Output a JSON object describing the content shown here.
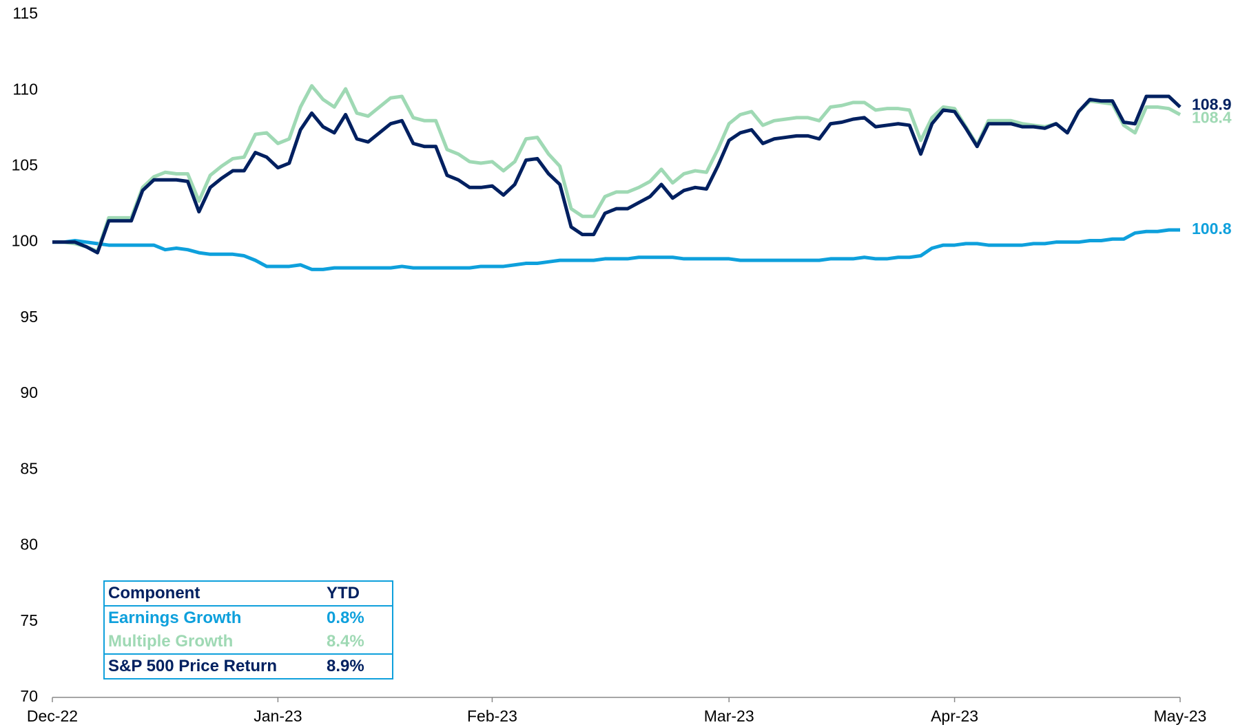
{
  "chart_data": {
    "type": "line",
    "categories": [
      "Dec-22",
      null,
      null,
      null,
      null,
      null,
      null,
      null,
      null,
      null,
      null,
      null,
      null,
      null,
      null,
      null,
      null,
      null,
      null,
      null,
      "Jan-23",
      null,
      null,
      null,
      null,
      null,
      null,
      null,
      null,
      null,
      null,
      null,
      null,
      null,
      null,
      null,
      null,
      null,
      null,
      "Feb-23",
      null,
      null,
      null,
      null,
      null,
      null,
      null,
      null,
      null,
      null,
      null,
      null,
      null,
      null,
      null,
      null,
      null,
      null,
      null,
      null,
      "Mar-23",
      null,
      null,
      null,
      null,
      null,
      null,
      null,
      null,
      null,
      null,
      null,
      null,
      null,
      null,
      null,
      null,
      null,
      null,
      null,
      "Apr-23",
      null,
      null,
      null,
      null,
      null,
      null,
      null,
      null,
      null,
      null,
      null,
      null,
      null,
      null,
      null,
      null,
      null,
      null,
      null,
      "May-23"
    ],
    "series": [
      {
        "color": "#0ea0dc",
        "values": [
          100.0,
          100.0,
          100.1,
          100.0,
          99.9,
          99.8,
          99.8,
          99.8,
          99.8,
          99.8,
          99.5,
          99.6,
          99.5,
          99.3,
          99.2,
          99.2,
          99.2,
          99.1,
          98.8,
          98.4,
          98.4,
          98.4,
          98.5,
          98.2,
          98.2,
          98.3,
          98.3,
          98.3,
          98.3,
          98.3,
          98.3,
          98.4,
          98.3,
          98.3,
          98.3,
          98.3,
          98.3,
          98.3,
          98.4,
          98.4,
          98.4,
          98.5,
          98.6,
          98.6,
          98.7,
          98.8,
          98.8,
          98.8,
          98.8,
          98.9,
          98.9,
          98.9,
          99.0,
          99.0,
          99.0,
          99.0,
          98.9,
          98.9,
          98.9,
          98.9,
          98.9,
          98.8,
          98.8,
          98.8,
          98.8,
          98.8,
          98.8,
          98.8,
          98.8,
          98.9,
          98.9,
          98.9,
          99.0,
          98.9,
          98.9,
          99.0,
          99.0,
          99.1,
          99.6,
          99.8,
          99.8,
          99.9,
          99.9,
          99.8,
          99.8,
          99.8,
          99.8,
          99.9,
          99.9,
          100.0,
          100.0,
          100.0,
          100.1,
          100.1,
          100.2,
          100.2,
          100.6,
          100.7,
          100.7,
          100.8,
          100.8
        ]
      },
      {
        "color": "#9fd9b4",
        "values": [
          100.0,
          100.0,
          99.9,
          99.7,
          99.4,
          101.6,
          101.6,
          101.6,
          103.6,
          104.3,
          104.6,
          104.5,
          104.5,
          102.7,
          104.4,
          105.0,
          105.5,
          105.6,
          107.1,
          107.2,
          106.5,
          106.8,
          108.9,
          110.3,
          109.4,
          108.9,
          110.1,
          108.5,
          108.3,
          108.9,
          109.5,
          109.6,
          108.2,
          108.0,
          108.0,
          106.1,
          105.8,
          105.3,
          105.2,
          105.3,
          104.7,
          105.3,
          106.8,
          106.9,
          105.8,
          105.0,
          102.2,
          101.7,
          101.7,
          103.0,
          103.3,
          103.3,
          103.6,
          104.0,
          104.8,
          103.9,
          104.5,
          104.7,
          104.6,
          106.1,
          107.8,
          108.4,
          108.6,
          107.7,
          108.0,
          108.1,
          108.2,
          108.2,
          108.0,
          108.9,
          109.0,
          109.2,
          109.2,
          108.7,
          108.8,
          108.8,
          108.7,
          106.7,
          108.2,
          108.9,
          108.8,
          107.6,
          106.4,
          108.0,
          108.0,
          108.0,
          107.8,
          107.7,
          107.6,
          107.8,
          107.2,
          108.6,
          109.3,
          109.2,
          109.1,
          107.7,
          107.2,
          108.9,
          108.9,
          108.8,
          108.4
        ]
      },
      {
        "color": "#002060",
        "values": [
          100.0,
          100.0,
          100.0,
          99.7,
          99.3,
          101.4,
          101.4,
          101.4,
          103.4,
          104.1,
          104.1,
          104.1,
          104.0,
          102.0,
          103.6,
          104.2,
          104.7,
          104.7,
          105.9,
          105.6,
          104.9,
          105.2,
          107.4,
          108.5,
          107.6,
          107.2,
          108.4,
          106.8,
          106.6,
          107.2,
          107.8,
          108.0,
          106.5,
          106.3,
          106.3,
          104.4,
          104.1,
          103.6,
          103.6,
          103.7,
          103.1,
          103.8,
          105.4,
          105.5,
          104.5,
          103.8,
          101.0,
          100.5,
          100.5,
          101.9,
          102.2,
          102.2,
          102.6,
          103.0,
          103.8,
          102.9,
          103.4,
          103.6,
          103.5,
          105.0,
          106.7,
          107.2,
          107.4,
          106.5,
          106.8,
          106.9,
          107.0,
          107.0,
          106.8,
          107.8,
          107.9,
          108.1,
          108.2,
          107.6,
          107.7,
          107.8,
          107.7,
          105.8,
          107.8,
          108.7,
          108.6,
          107.5,
          106.3,
          107.8,
          107.8,
          107.8,
          107.6,
          107.6,
          107.5,
          107.8,
          107.2,
          108.6,
          109.4,
          109.3,
          109.3,
          107.9,
          107.8,
          109.6,
          109.6,
          109.6,
          108.9
        ]
      }
    ],
    "ylim": [
      70,
      115
    ],
    "yticks": [
      70,
      75,
      80,
      85,
      90,
      95,
      100,
      105,
      110,
      115
    ],
    "grid": false,
    "table": {
      "header": [
        "Component",
        "YTD"
      ],
      "rows": [
        [
          "Earnings Growth",
          "0.8%"
        ],
        [
          "Multiple Growth",
          "8.4%"
        ],
        [
          "S&P 500 Price Return",
          "8.9%"
        ]
      ]
    }
  }
}
